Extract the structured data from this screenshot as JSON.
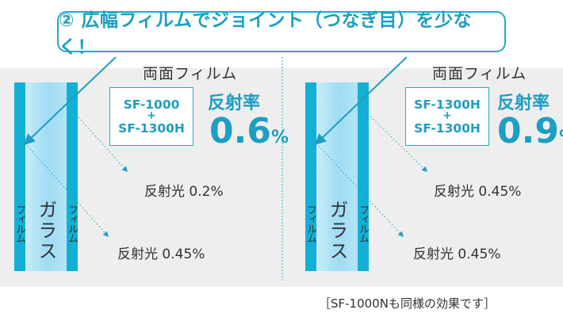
{
  "headline": "② 広幅フィルムでジョイント（つなぎ目）を少なく！",
  "panels": [
    {
      "film_type": "両面フィルム",
      "spec_front": "SF-1000",
      "spec_plus": "+",
      "spec_back": "SF-1300H",
      "reflectance_label": "反射率",
      "reflectance_value": "0.6",
      "reflectance_unit": "%",
      "reflect_front": "反射光 0.2%",
      "reflect_back": "反射光 0.45%",
      "film_left": "フィルム",
      "glass": "ガラス",
      "film_right": "フィルム"
    },
    {
      "film_type": "両面フィルム",
      "spec_front": "SF-1300H",
      "spec_plus": "+",
      "spec_back": "SF-1300H",
      "reflectance_label": "反射率",
      "reflectance_value": "0.9",
      "reflectance_unit": "%",
      "reflect_front": "反射光 0.45%",
      "reflect_back": "反射光 0.45%",
      "film_left": "フィルム",
      "glass": "ガラス",
      "film_right": "フィルム"
    }
  ],
  "footnote": "［SF-1000Nも同様の効果です］",
  "colors": {
    "accent": "#1d9ec2",
    "film": "#12b0d5",
    "glass": "#b4e4f6",
    "background_band": "#eeeeee"
  }
}
